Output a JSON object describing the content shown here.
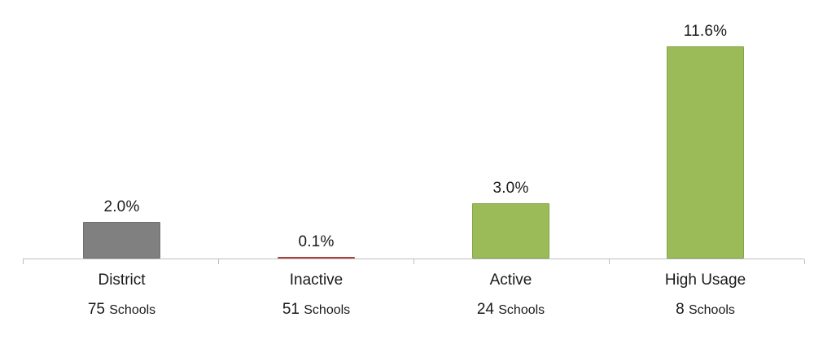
{
  "chart_data": {
    "type": "bar",
    "title": "",
    "xlabel": "",
    "ylabel": "",
    "ylim": [
      0,
      11.6
    ],
    "grid": false,
    "legend": false,
    "categories": [
      "District",
      "Inactive",
      "Active",
      "High Usage"
    ],
    "values": [
      2.0,
      0.1,
      3.0,
      11.6
    ],
    "value_labels": [
      "2.0%",
      "0.1%",
      "3.0%",
      "11.6%"
    ],
    "counts": [
      "75",
      "51",
      "24",
      "8"
    ],
    "count_unit": "Schools",
    "bar_colors": [
      "#808080",
      "#c0504d",
      "#9bbb59",
      "#9bbb59"
    ],
    "bar_border_colors": [
      "#6e6e6e",
      "#a8423e",
      "#85a349",
      "#85a349"
    ],
    "axis_color": "#bfbfbf",
    "text_color": "#1a1a1a"
  }
}
